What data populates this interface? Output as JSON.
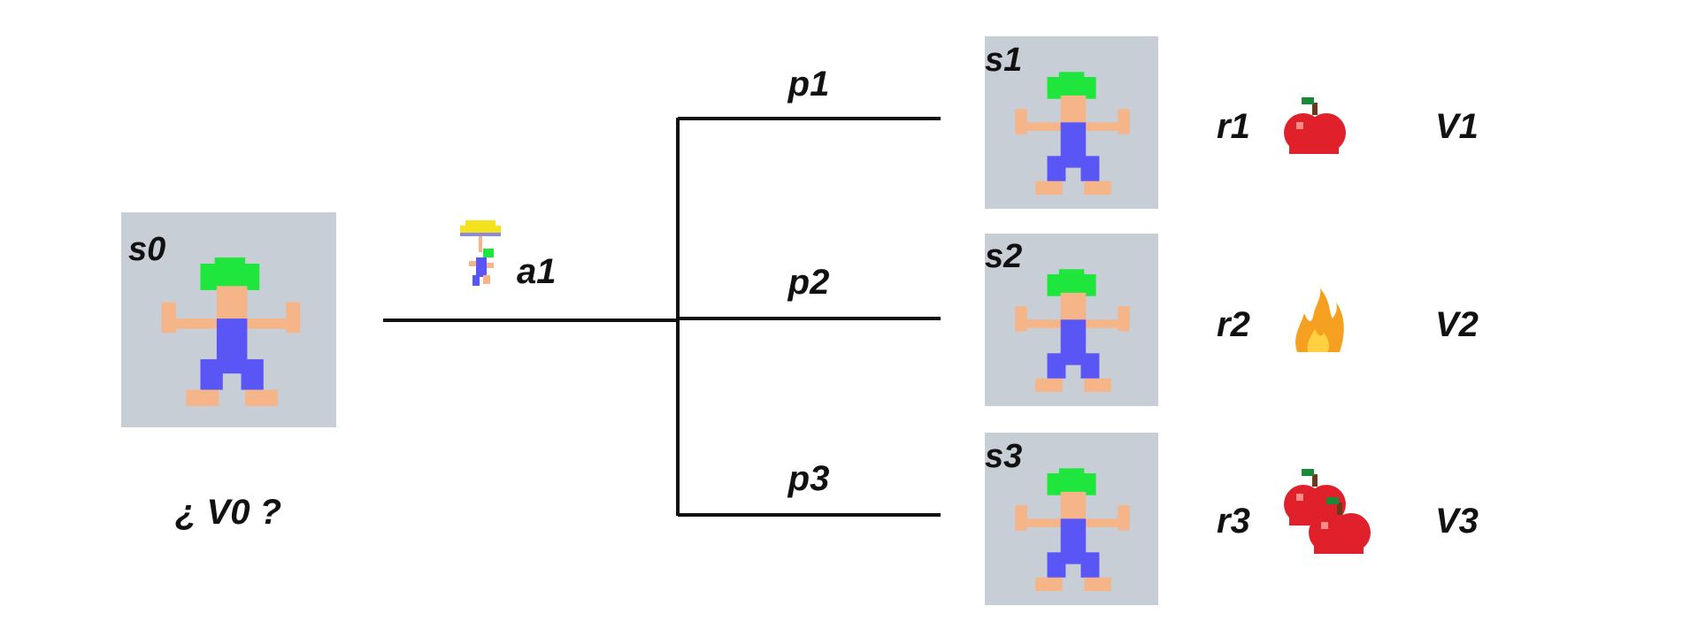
{
  "initial_state": {
    "label": "s0",
    "value_question": "¿ V0 ?"
  },
  "action": {
    "label": "a1",
    "icon": "umbrella-character-icon"
  },
  "branches": [
    {
      "prob": "p1",
      "state": "s1",
      "reward": "r1",
      "reward_icon": "apple-icon",
      "value": "V1"
    },
    {
      "prob": "p2",
      "state": "s2",
      "reward": "r2",
      "reward_icon": "fire-icon",
      "value": "V2"
    },
    {
      "prob": "p3",
      "state": "s3",
      "reward": "r3",
      "reward_icon": "two-apples-icon",
      "value": "V3"
    }
  ],
  "colors": {
    "state_bg": "#c8ced6",
    "hair": "#1ee63c",
    "skin": "#f5b589",
    "body": "#5a55f5",
    "apple": "#e0202a",
    "flame": "#f5a020",
    "line": "#111111"
  }
}
